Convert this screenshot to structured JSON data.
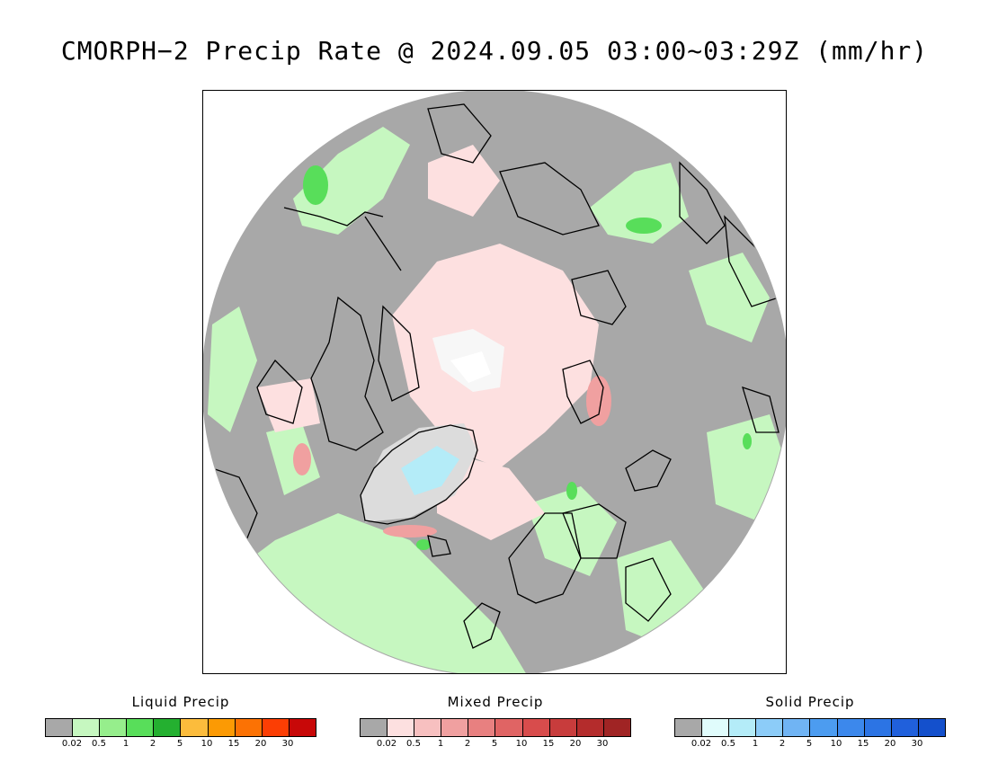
{
  "title": "CMORPH−2 Precip Rate @ 2024.09.05 03:00~03:29Z (mm/hr)",
  "legends": [
    {
      "name": "liquid",
      "title": "Liquid Precip",
      "colors": [
        "#a8a8a8",
        "#c6f7c0",
        "#96ee8c",
        "#58de5a",
        "#24b030",
        "#fcbc3c",
        "#fc9a04",
        "#fc7204",
        "#fc3e04",
        "#c80808"
      ],
      "ticks": [
        "0.02",
        "0.5",
        "1",
        "2",
        "5",
        "10",
        "15",
        "20",
        "30"
      ]
    },
    {
      "name": "mixed",
      "title": "Mixed Precip",
      "colors": [
        "#a8a8a8",
        "#fde0e0",
        "#f7c0c0",
        "#f0a0a0",
        "#e88080",
        "#e06464",
        "#d84c4c",
        "#c83c3c",
        "#b42c2c",
        "#a02424"
      ],
      "ticks": [
        "0.02",
        "0.5",
        "1",
        "2",
        "5",
        "10",
        "15",
        "20",
        "30"
      ]
    },
    {
      "name": "solid",
      "title": "Solid Precip",
      "colors": [
        "#a8a8a8",
        "#e0fcfc",
        "#b4ecf8",
        "#8cccf8",
        "#70b4f4",
        "#4c9cf0",
        "#3c88ec",
        "#2c74e4",
        "#2060dc",
        "#1450cc"
      ],
      "ticks": [
        "0.02",
        "0.5",
        "1",
        "2",
        "5",
        "10",
        "15",
        "20",
        "30"
      ]
    }
  ],
  "map": {
    "projection": "polar-stereographic-north",
    "background_color": "#a8a8a8",
    "coastline_color": "#000000"
  }
}
